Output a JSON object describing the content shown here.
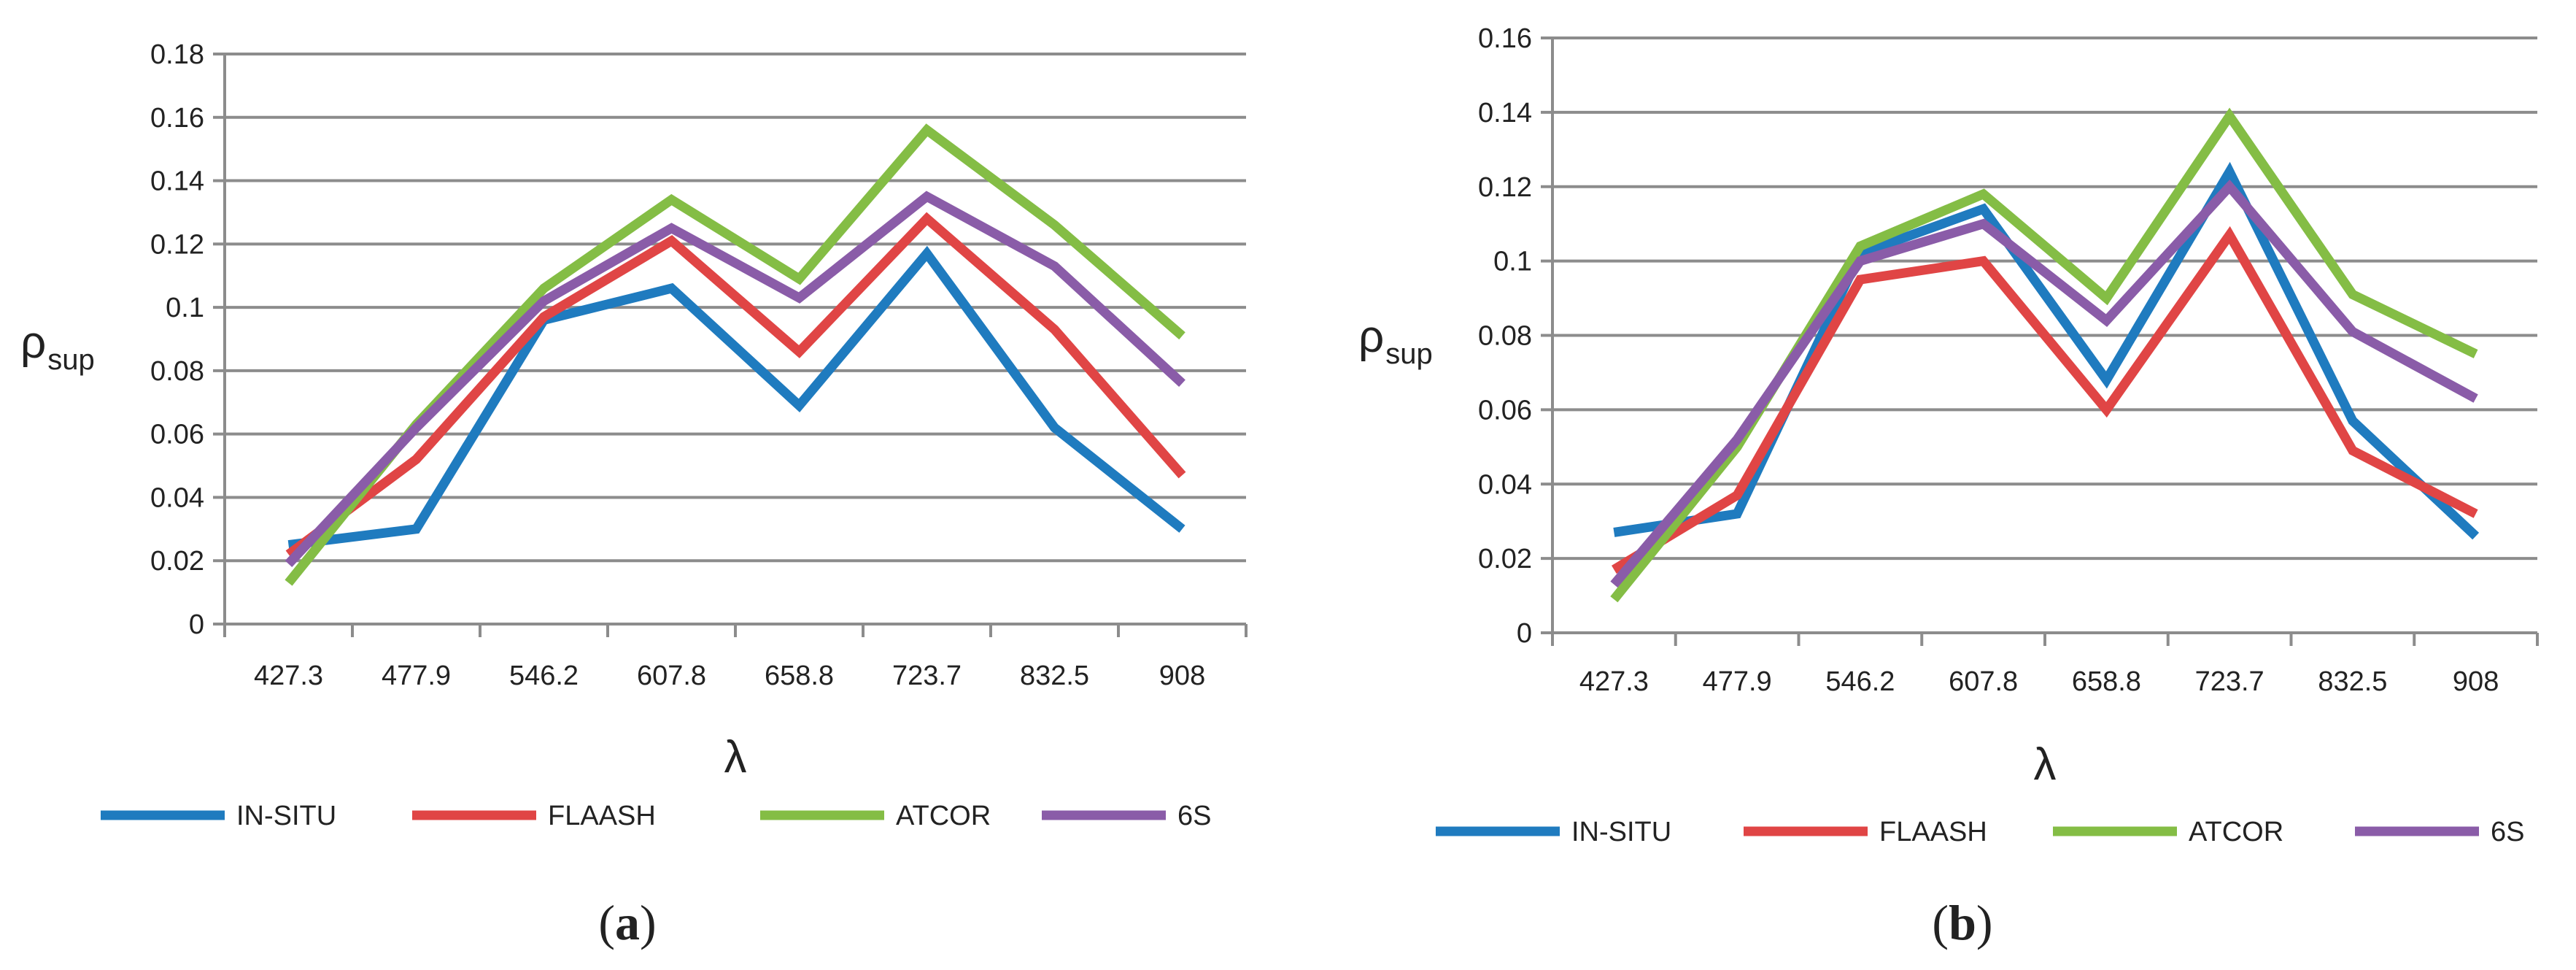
{
  "chart_data": [
    {
      "type": "line",
      "panel_label": "(a)",
      "xlabel": "λ",
      "ylabel": "ρ",
      "ylabel_sub": "sup",
      "categories": [
        "427.3",
        "477.9",
        "546.2",
        "607.8",
        "658.8",
        "723.7",
        "832.5",
        "908"
      ],
      "ylim": [
        0,
        0.18
      ],
      "yticks": [
        0,
        0.02,
        0.04,
        0.06,
        0.08,
        0.1,
        0.12,
        0.14,
        0.16,
        0.18
      ],
      "ytick_labels": [
        "0",
        "0.02",
        "0.04",
        "0.06",
        "0.08",
        "0.1",
        "0.12",
        "0.14",
        "0.16",
        "0.18"
      ],
      "grid": true,
      "legend_position": "bottom",
      "series": [
        {
          "name": "IN-SITU",
          "color": "#1f7bbf",
          "values": [
            0.025,
            0.03,
            0.096,
            0.106,
            0.069,
            0.117,
            0.062,
            0.03
          ]
        },
        {
          "name": "FLAASH",
          "color": "#e04545",
          "values": [
            0.022,
            0.052,
            0.097,
            0.121,
            0.086,
            0.128,
            0.093,
            0.047
          ]
        },
        {
          "name": "ATCOR",
          "color": "#84bd45",
          "values": [
            0.013,
            0.063,
            0.106,
            0.134,
            0.109,
            0.156,
            0.126,
            0.091
          ]
        },
        {
          "name": "6S",
          "color": "#8a5ca8",
          "values": [
            0.019,
            0.062,
            0.102,
            0.125,
            0.103,
            0.135,
            0.113,
            0.076
          ]
        }
      ]
    },
    {
      "type": "line",
      "panel_label": "(b)",
      "xlabel": "λ",
      "ylabel": "ρ",
      "ylabel_sub": "sup",
      "categories": [
        "427.3",
        "477.9",
        "546.2",
        "607.8",
        "658.8",
        "723.7",
        "832.5",
        "908"
      ],
      "ylim": [
        0,
        0.16
      ],
      "yticks": [
        0,
        0.02,
        0.04,
        0.06,
        0.08,
        0.1,
        0.12,
        0.14,
        0.16
      ],
      "ytick_labels": [
        "0",
        "0.02",
        "0.04",
        "0.06",
        "0.08",
        "0.1",
        "0.12",
        "0.14",
        "0.16"
      ],
      "grid": true,
      "legend_position": "bottom",
      "series": [
        {
          "name": "IN-SITU",
          "color": "#1f7bbf",
          "values": [
            0.027,
            0.032,
            0.102,
            0.114,
            0.068,
            0.124,
            0.057,
            0.026
          ]
        },
        {
          "name": "FLAASH",
          "color": "#e04545",
          "values": [
            0.017,
            0.037,
            0.095,
            0.1,
            0.06,
            0.107,
            0.049,
            0.032
          ]
        },
        {
          "name": "ATCOR",
          "color": "#84bd45",
          "values": [
            0.009,
            0.05,
            0.104,
            0.118,
            0.09,
            0.139,
            0.091,
            0.075
          ]
        },
        {
          "name": "6S",
          "color": "#8a5ca8",
          "values": [
            0.013,
            0.052,
            0.1,
            0.11,
            0.084,
            0.12,
            0.081,
            0.063
          ]
        }
      ]
    }
  ]
}
